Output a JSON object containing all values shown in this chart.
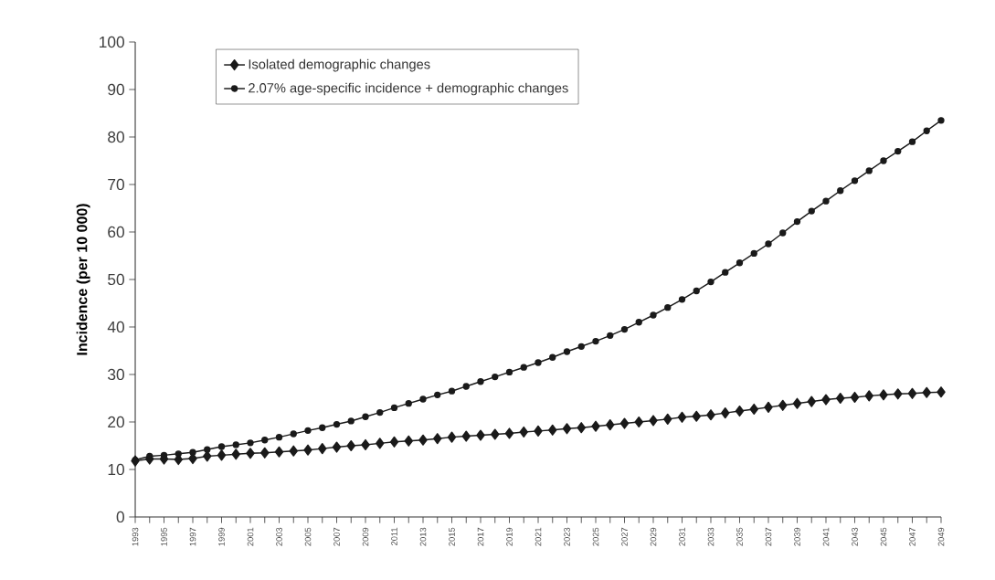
{
  "chart_data": {
    "type": "line",
    "ylabel": "Incidence (per 10 000)",
    "x": [
      1993,
      1994,
      1995,
      1996,
      1997,
      1998,
      1999,
      2000,
      2001,
      2002,
      2003,
      2004,
      2005,
      2006,
      2007,
      2008,
      2009,
      2010,
      2011,
      2012,
      2013,
      2014,
      2015,
      2016,
      2017,
      2018,
      2019,
      2020,
      2021,
      2022,
      2023,
      2024,
      2025,
      2026,
      2027,
      2028,
      2029,
      2030,
      2031,
      2032,
      2033,
      2034,
      2035,
      2036,
      2037,
      2038,
      2039,
      2040,
      2041,
      2042,
      2043,
      2044,
      2045,
      2046,
      2047,
      2048,
      2049
    ],
    "series": [
      {
        "name": "Isolated demographic changes",
        "color": "#1a1a1a",
        "marker": "diamond",
        "values": [
          11.8,
          12.2,
          12.2,
          12.1,
          12.3,
          12.8,
          13.0,
          13.2,
          13.4,
          13.5,
          13.7,
          13.9,
          14.1,
          14.4,
          14.7,
          15.0,
          15.2,
          15.5,
          15.8,
          16.0,
          16.2,
          16.5,
          16.8,
          17.0,
          17.2,
          17.4,
          17.6,
          17.9,
          18.1,
          18.3,
          18.6,
          18.8,
          19.1,
          19.4,
          19.7,
          20.0,
          20.3,
          20.6,
          21.0,
          21.2,
          21.5,
          21.9,
          22.3,
          22.7,
          23.1,
          23.5,
          23.9,
          24.3,
          24.7,
          25.0,
          25.2,
          25.5,
          25.7,
          25.9,
          26.0,
          26.2,
          26.3
        ]
      },
      {
        "name": "2.07% age-specific incidence + demographic changes",
        "color": "#1a1a1a",
        "marker": "circle",
        "values": [
          12.0,
          12.8,
          13.0,
          13.3,
          13.6,
          14.2,
          14.8,
          15.2,
          15.6,
          16.2,
          16.8,
          17.5,
          18.2,
          18.8,
          19.5,
          20.2,
          21.1,
          22.0,
          23.0,
          23.9,
          24.8,
          25.7,
          26.5,
          27.5,
          28.5,
          29.5,
          30.5,
          31.5,
          32.5,
          33.6,
          34.8,
          35.9,
          37.0,
          38.2,
          39.5,
          41.0,
          42.5,
          44.1,
          45.8,
          47.6,
          49.5,
          51.5,
          53.5,
          55.5,
          57.5,
          59.8,
          62.2,
          64.4,
          66.5,
          68.7,
          70.8,
          72.9,
          75.0,
          77.0,
          79.0,
          81.3,
          83.5
        ]
      }
    ],
    "xlim": [
      1993,
      2049
    ],
    "xticks": [
      1993,
      1995,
      1997,
      1999,
      2001,
      2003,
      2005,
      2007,
      2009,
      2011,
      2013,
      2015,
      2017,
      2019,
      2021,
      2023,
      2025,
      2027,
      2029,
      2031,
      2033,
      2035,
      2037,
      2039,
      2041,
      2043,
      2045,
      2047,
      2049
    ],
    "ylim": [
      0,
      100
    ],
    "yticks": [
      0,
      10,
      20,
      30,
      40,
      50,
      60,
      70,
      80,
      90,
      100
    ],
    "grid": false,
    "legend": "top left",
    "line_style": "solid"
  }
}
